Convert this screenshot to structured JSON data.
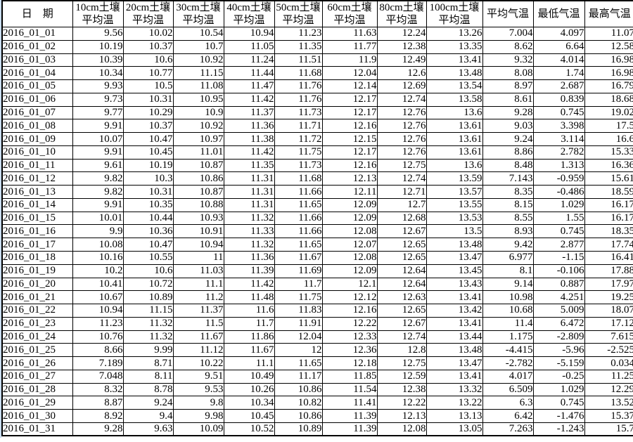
{
  "colors": {
    "grid_border": "#000000",
    "text": "#000000",
    "background": "#ffffff",
    "left_edge_strip": "#c9ddf0"
  },
  "table": {
    "date_header": "日　期",
    "soil_headers": [
      {
        "depth": "10cm",
        "line1": "10cm土壤",
        "line2": "平均温"
      },
      {
        "depth": "20cm",
        "line1": "20cm土壤",
        "line2": "平均温"
      },
      {
        "depth": "30cm",
        "line1": "30cm土壤",
        "line2": "平均温"
      },
      {
        "depth": "40cm",
        "line1": "40cm土壤",
        "line2": "平均温"
      },
      {
        "depth": "50cm",
        "line1": "50cm土壤",
        "line2": "平均温"
      },
      {
        "depth": "60cm",
        "line1": "60cm土壤",
        "line2": "平均温"
      },
      {
        "depth": "80cm",
        "line1": "80cm土壤",
        "line2": "平均温"
      },
      {
        "depth": "100cm",
        "line1": "100cm土壤",
        "line2": "平均温"
      }
    ],
    "air_headers": [
      "平均气温",
      "最低气温",
      "最高气温"
    ],
    "rows": [
      {
        "date": "2016_01_01",
        "values": [
          "9.56",
          "10.02",
          "10.54",
          "10.94",
          "11.23",
          "11.63",
          "12.24",
          "13.26",
          "7.004",
          "4.097",
          "11.07"
        ]
      },
      {
        "date": "2016_01_02",
        "values": [
          "10.19",
          "10.37",
          "10.7",
          "11.05",
          "11.35",
          "11.77",
          "12.38",
          "13.35",
          "8.62",
          "6.64",
          "12.58"
        ]
      },
      {
        "date": "2016_01_03",
        "values": [
          "10.39",
          "10.6",
          "10.92",
          "11.24",
          "11.51",
          "11.9",
          "12.49",
          "13.41",
          "9.32",
          "4.014",
          "16.98"
        ]
      },
      {
        "date": "2016_01_04",
        "values": [
          "10.34",
          "10.77",
          "11.15",
          "11.44",
          "11.68",
          "12.04",
          "12.6",
          "13.48",
          "8.08",
          "1.74",
          "16.98"
        ]
      },
      {
        "date": "2016_01_05",
        "values": [
          "9.93",
          "10.5",
          "11.08",
          "11.47",
          "11.76",
          "12.14",
          "12.69",
          "13.54",
          "8.97",
          "2.687",
          "16.79"
        ]
      },
      {
        "date": "2016_01_06",
        "values": [
          "9.73",
          "10.31",
          "10.95",
          "11.42",
          "11.76",
          "12.17",
          "12.74",
          "13.58",
          "8.61",
          "0.839",
          "18.68"
        ]
      },
      {
        "date": "2016_01_07",
        "values": [
          "9.77",
          "10.29",
          "10.9",
          "11.37",
          "11.73",
          "12.17",
          "12.76",
          "13.6",
          "9.28",
          "0.745",
          "19.02"
        ]
      },
      {
        "date": "2016_01_08",
        "values": [
          "9.91",
          "10.37",
          "10.92",
          "11.36",
          "11.71",
          "12.16",
          "12.76",
          "13.61",
          "9.03",
          "3.398",
          "17.5"
        ]
      },
      {
        "date": "2016_01_09",
        "values": [
          "10.07",
          "10.47",
          "10.97",
          "11.38",
          "11.72",
          "12.15",
          "12.76",
          "13.61",
          "9.24",
          "3.114",
          "16.6"
        ]
      },
      {
        "date": "2016_01_10",
        "values": [
          "9.91",
          "10.45",
          "11.01",
          "11.42",
          "11.75",
          "12.17",
          "12.76",
          "13.61",
          "8.86",
          "2.782",
          "15.33"
        ]
      },
      {
        "date": "2016_01_11",
        "values": [
          "9.61",
          "10.19",
          "10.87",
          "11.35",
          "11.73",
          "12.16",
          "12.75",
          "13.6",
          "8.48",
          "1.313",
          "16.36"
        ]
      },
      {
        "date": "2016_01_12",
        "values": [
          "9.82",
          "10.3",
          "10.86",
          "11.31",
          "11.68",
          "12.13",
          "12.74",
          "13.59",
          "7.143",
          "-0.959",
          "15.61"
        ]
      },
      {
        "date": "2016_01_13",
        "values": [
          "9.82",
          "10.31",
          "10.87",
          "11.31",
          "11.66",
          "12.11",
          "12.71",
          "13.57",
          "8.35",
          "-0.486",
          "18.59"
        ]
      },
      {
        "date": "2016_01_14",
        "values": [
          "9.91",
          "10.35",
          "10.88",
          "11.31",
          "11.65",
          "12.09",
          "12.7",
          "13.55",
          "8.15",
          "1.029",
          "16.17"
        ]
      },
      {
        "date": "2016_01_15",
        "values": [
          "10.01",
          "10.44",
          "10.93",
          "11.32",
          "11.66",
          "12.09",
          "12.68",
          "13.53",
          "8.55",
          "1.55",
          "16.17"
        ]
      },
      {
        "date": "2016_01_16",
        "values": [
          "9.9",
          "10.36",
          "10.91",
          "11.33",
          "11.66",
          "12.08",
          "12.67",
          "13.5",
          "8.93",
          "0.745",
          "18.35"
        ]
      },
      {
        "date": "2016_01_17",
        "values": [
          "10.08",
          "10.47",
          "10.94",
          "11.32",
          "11.65",
          "12.07",
          "12.65",
          "13.48",
          "9.42",
          "2.877",
          "17.74"
        ]
      },
      {
        "date": "2016_01_18",
        "values": [
          "10.16",
          "10.55",
          "11",
          "11.36",
          "11.67",
          "12.08",
          "12.65",
          "13.47",
          "6.977",
          "-1.15",
          "16.41"
        ]
      },
      {
        "date": "2016_01_19",
        "values": [
          "10.2",
          "10.6",
          "11.03",
          "11.39",
          "11.69",
          "12.09",
          "12.64",
          "13.45",
          "8.1",
          "-0.106",
          "17.88"
        ]
      },
      {
        "date": "2016_01_20",
        "values": [
          "10.41",
          "10.72",
          "11.1",
          "11.42",
          "11.7",
          "12.1",
          "12.64",
          "13.43",
          "9.14",
          "0.887",
          "17.97"
        ]
      },
      {
        "date": "2016_01_21",
        "values": [
          "10.67",
          "10.89",
          "11.2",
          "11.48",
          "11.75",
          "12.12",
          "12.63",
          "13.41",
          "10.98",
          "4.251",
          "19.25"
        ]
      },
      {
        "date": "2016_01_22",
        "values": [
          "10.94",
          "11.15",
          "11.37",
          "11.6",
          "11.83",
          "12.16",
          "12.65",
          "13.42",
          "10.68",
          "5.009",
          "18.07"
        ]
      },
      {
        "date": "2016_01_23",
        "values": [
          "11.23",
          "11.32",
          "11.5",
          "11.7",
          "11.91",
          "12.22",
          "12.67",
          "13.41",
          "11.4",
          "6.472",
          "17.12"
        ]
      },
      {
        "date": "2016_01_24",
        "values": [
          "10.76",
          "11.32",
          "11.67",
          "11.86",
          "12.04",
          "12.33",
          "12.74",
          "13.44",
          "1.175",
          "-2.809",
          "7.615"
        ]
      },
      {
        "date": "2016_01_25",
        "values": [
          "8.66",
          "9.99",
          "11.12",
          "11.67",
          "12",
          "12.36",
          "12.8",
          "13.48",
          "-4.415",
          "-5.96",
          "-2.525"
        ]
      },
      {
        "date": "2016_01_26",
        "values": [
          "7.189",
          "8.71",
          "10.22",
          "11.1",
          "11.65",
          "12.18",
          "12.75",
          "13.47",
          "-2.782",
          "-5.159",
          "0.034"
        ]
      },
      {
        "date": "2016_01_27",
        "values": [
          "7.048",
          "8.11",
          "9.51",
          "10.49",
          "11.17",
          "11.85",
          "12.59",
          "13.41",
          "4.017",
          "-0.25",
          "11.25"
        ]
      },
      {
        "date": "2016_01_28",
        "values": [
          "8.32",
          "8.78",
          "9.53",
          "10.26",
          "10.86",
          "11.54",
          "12.38",
          "13.32",
          "6.509",
          "1.029",
          "12.29"
        ]
      },
      {
        "date": "2016_01_29",
        "values": [
          "8.87",
          "9.24",
          "9.8",
          "10.34",
          "10.82",
          "11.41",
          "12.22",
          "13.22",
          "6.3",
          "0.745",
          "13.52"
        ]
      },
      {
        "date": "2016_01_30",
        "values": [
          "8.92",
          "9.4",
          "9.98",
          "10.45",
          "10.86",
          "11.39",
          "12.13",
          "13.13",
          "6.42",
          "-1.476",
          "15.37"
        ]
      },
      {
        "date": "2016_01_31",
        "values": [
          "9.28",
          "9.63",
          "10.09",
          "10.52",
          "10.89",
          "11.39",
          "12.08",
          "13.05",
          "7.263",
          "-1.243",
          "15.7"
        ]
      }
    ]
  }
}
